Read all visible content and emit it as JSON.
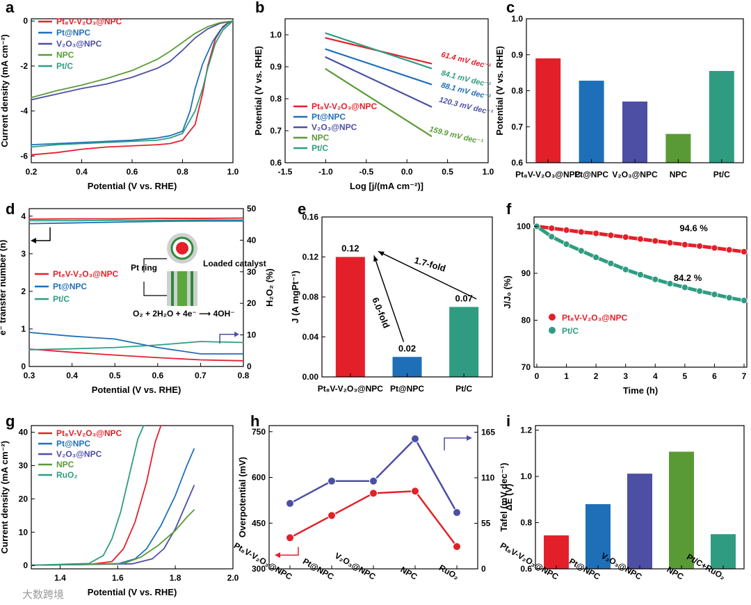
{
  "figure": {
    "watermark": "大数跨境"
  },
  "colors": {
    "Pt8V-V2O3@NPC": "#e3202a",
    "Pt@NPC": "#1f6fb8",
    "V2O3@NPC": "#4c4fa3",
    "NPC": "#5a9a36",
    "Pt/C": "#2f9c82",
    "RuO2": "#2f9c82"
  },
  "chart_data": [
    {
      "id": "a",
      "panel_label": "a",
      "type": "line",
      "xlabel": "Potential (V vs. RHE)",
      "ylabel": "Current density (mA cm⁻²)",
      "xlim": [
        0.2,
        1.0
      ],
      "ylim": [
        -6.3,
        0.1
      ],
      "xticks": [
        0.2,
        0.4,
        0.6,
        0.8,
        1.0
      ],
      "xtick_labels": [
        "0.2",
        "0.4",
        "0.6",
        "0.8",
        "1.0"
      ],
      "yticks": [
        0,
        -2,
        -4,
        -6
      ],
      "ytick_labels": [
        "0",
        "-2",
        "-4",
        "-6"
      ],
      "legend_position": "top-left",
      "series": [
        {
          "name": "Pt8V-V2O3@NPC",
          "label": "Pt₈V-V₂O₃@NPC",
          "x": [
            0.2,
            0.3,
            0.4,
            0.5,
            0.6,
            0.7,
            0.75,
            0.8,
            0.85,
            0.88,
            0.9,
            0.93,
            0.96,
            0.98,
            1.0
          ],
          "y": [
            -5.95,
            -5.85,
            -5.7,
            -5.6,
            -5.55,
            -5.5,
            -5.45,
            -5.3,
            -4.6,
            -3.2,
            -2.0,
            -0.8,
            -0.25,
            -0.08,
            0
          ]
        },
        {
          "name": "Pt@NPC",
          "label": "Pt@NPC",
          "x": [
            0.2,
            0.3,
            0.4,
            0.5,
            0.6,
            0.7,
            0.75,
            0.8,
            0.83,
            0.85,
            0.88,
            0.92,
            0.95,
            0.98,
            1.0
          ],
          "y": [
            -5.5,
            -5.45,
            -5.4,
            -5.35,
            -5.3,
            -5.2,
            -5.1,
            -4.9,
            -4.0,
            -3.0,
            -1.9,
            -0.9,
            -0.4,
            -0.1,
            0
          ]
        },
        {
          "name": "V2O3@NPC",
          "label": "V₂O₃@NPC",
          "x": [
            0.2,
            0.3,
            0.4,
            0.5,
            0.6,
            0.7,
            0.75,
            0.8,
            0.85,
            0.9,
            0.95,
            1.0
          ],
          "y": [
            -3.5,
            -3.25,
            -3.0,
            -2.8,
            -2.5,
            -2.1,
            -1.8,
            -1.3,
            -0.75,
            -0.35,
            -0.1,
            0
          ]
        },
        {
          "name": "NPC",
          "label": "NPC",
          "x": [
            0.2,
            0.3,
            0.4,
            0.5,
            0.6,
            0.7,
            0.75,
            0.8,
            0.85,
            0.9,
            0.95,
            1.0
          ],
          "y": [
            -3.4,
            -3.1,
            -2.85,
            -2.55,
            -2.2,
            -1.7,
            -1.35,
            -0.95,
            -0.55,
            -0.25,
            -0.07,
            0
          ]
        },
        {
          "name": "Pt/C",
          "label": "Pt/C",
          "x": [
            0.2,
            0.3,
            0.4,
            0.5,
            0.6,
            0.7,
            0.75,
            0.8,
            0.85,
            0.88,
            0.9,
            0.93,
            0.96,
            1.0
          ],
          "y": [
            -5.6,
            -5.5,
            -5.45,
            -5.4,
            -5.35,
            -5.3,
            -5.2,
            -5.0,
            -4.0,
            -3.0,
            -2.1,
            -1.0,
            -0.4,
            0
          ]
        }
      ]
    },
    {
      "id": "b",
      "panel_label": "b",
      "type": "line",
      "xlabel": "Log [j/(mA cm⁻²)]",
      "ylabel": "Potential (V vs. RHE)",
      "xlim": [
        -1.5,
        1.0
      ],
      "ylim": [
        0.6,
        1.05
      ],
      "xticks": [
        -1.5,
        -1.0,
        -0.5,
        0.0,
        0.5,
        1.0
      ],
      "xtick_labels": [
        "-1.5",
        "-1.0",
        "-0.5",
        "0.0",
        "0.5",
        "1.0"
      ],
      "yticks": [
        0.6,
        0.7,
        0.8,
        0.9,
        1.0
      ],
      "ytick_labels": [
        "0.6",
        "0.7",
        "0.8",
        "0.9",
        "1.0"
      ],
      "legend_position": "bottom-left",
      "series": [
        {
          "name": "Pt8V-V2O3@NPC",
          "label": "Pt₈V-V₂O₃@NPC",
          "x": [
            -1.0,
            0.3
          ],
          "y": [
            0.99,
            0.91
          ],
          "annotation": "61.4 mV dec⁻¹"
        },
        {
          "name": "Pt@NPC",
          "label": "Pt@NPC",
          "x": [
            -1.0,
            0.3
          ],
          "y": [
            0.955,
            0.845
          ],
          "annotation": "88.1 mV dec⁻¹"
        },
        {
          "name": "V2O3@NPC",
          "label": "V₂O₃@NPC",
          "x": [
            -1.0,
            0.3
          ],
          "y": [
            0.93,
            0.775
          ],
          "annotation": "120.3 mV dec⁻¹"
        },
        {
          "name": "NPC",
          "label": "NPC",
          "x": [
            -1.0,
            0.3
          ],
          "y": [
            0.893,
            0.683
          ],
          "annotation": "159.9 mV dec⁻¹"
        },
        {
          "name": "Pt/C",
          "label": "Pt/C",
          "x": [
            -1.0,
            0.3
          ],
          "y": [
            1.005,
            0.895
          ],
          "annotation": "84.1 mV dec⁻¹"
        }
      ]
    },
    {
      "id": "c",
      "panel_label": "c",
      "type": "bar",
      "ylabel": "Potential (V vs. RHE)",
      "ylim": [
        0.6,
        1.0
      ],
      "yticks": [
        0.6,
        0.7,
        0.8,
        0.9,
        1.0
      ],
      "ytick_labels": [
        "0.6",
        "0.7",
        "0.8",
        "0.9",
        "1.0"
      ],
      "categories": [
        "Pt₈V-V₂O₃@NPC",
        "Pt@NPC",
        "V₂O₃@NPC",
        "NPC",
        "Pt/C"
      ],
      "category_keys": [
        "Pt8V-V2O3@NPC",
        "Pt@NPC",
        "V2O3@NPC",
        "NPC",
        "Pt/C"
      ],
      "values": [
        0.89,
        0.828,
        0.77,
        0.68,
        0.855
      ]
    },
    {
      "id": "d",
      "panel_label": "d",
      "type": "line",
      "xlabel": "Potential (V vs. RHE)",
      "ylabel": "e⁻ transfer number (n)",
      "ylabel_right": "H₂O₂ (%)",
      "xlim": [
        0.3,
        0.8
      ],
      "ylim": [
        0,
        4.2
      ],
      "ylim_right": [
        0,
        50
      ],
      "xticks": [
        0.3,
        0.4,
        0.5,
        0.6,
        0.7,
        0.8
      ],
      "xtick_labels": [
        "0.3",
        "0.4",
        "0.5",
        "0.6",
        "0.7",
        "0.8"
      ],
      "yticks": [
        0,
        1,
        2,
        3,
        4
      ],
      "ytick_labels": [
        "0",
        "1",
        "2",
        "3",
        "4"
      ],
      "yticks_right": [
        0,
        10,
        20,
        30,
        40,
        50
      ],
      "ytick_labels_right": [
        "0",
        "10",
        "20",
        "30",
        "40",
        "50"
      ],
      "legend_position": "middle-left",
      "inset": {
        "ring_label": "Pt ring",
        "catalyst_label": "Loaded catalyst",
        "equation": "O₂ + 2H₂O + 4e⁻ ⟶ 4OH⁻"
      },
      "series": [
        {
          "name": "Pt8V-V2O3@NPC",
          "label": "Pt₈V-V₂O₃@NPC",
          "axis": "left",
          "x": [
            0.3,
            0.4,
            0.5,
            0.6,
            0.7,
            0.8
          ],
          "y": [
            3.92,
            3.93,
            3.93,
            3.94,
            3.94,
            3.95
          ]
        },
        {
          "name": "Pt@NPC",
          "label": "Pt@NPC",
          "axis": "left",
          "x": [
            0.3,
            0.4,
            0.5,
            0.6,
            0.7,
            0.8
          ],
          "y": [
            3.8,
            3.82,
            3.84,
            3.86,
            3.87,
            3.87
          ]
        },
        {
          "name": "Pt/C",
          "label": "Pt/C",
          "axis": "left",
          "x": [
            0.3,
            0.4,
            0.5,
            0.6,
            0.7,
            0.8
          ],
          "y": [
            3.88,
            3.88,
            3.89,
            3.89,
            3.9,
            3.9
          ]
        },
        {
          "name": "Pt8V-V2O3@NPC",
          "label": "",
          "axis": "right",
          "x": [
            0.3,
            0.4,
            0.5,
            0.6,
            0.7,
            0.8
          ],
          "y": [
            5.5,
            4.5,
            3.6,
            2.8,
            2.1,
            1.8
          ]
        },
        {
          "name": "Pt@NPC",
          "label": "",
          "axis": "right",
          "x": [
            0.3,
            0.4,
            0.5,
            0.6,
            0.7,
            0.8
          ],
          "y": [
            10.8,
            9.6,
            8.7,
            6.0,
            4.0,
            4.0
          ]
        },
        {
          "name": "Pt/C",
          "label": "",
          "axis": "right",
          "x": [
            0.3,
            0.4,
            0.5,
            0.6,
            0.7,
            0.8
          ],
          "y": [
            5.3,
            5.6,
            6.0,
            6.8,
            7.9,
            7.6
          ]
        }
      ]
    },
    {
      "id": "e",
      "panel_label": "e",
      "type": "bar",
      "ylabel": "J (A mgPt⁻¹)",
      "ylim": [
        0,
        0.16
      ],
      "yticks": [
        0,
        0.04,
        0.08,
        0.12,
        0.16
      ],
      "ytick_labels": [
        "0.00",
        "0.04",
        "0.08",
        "0.12",
        "0.16"
      ],
      "categories": [
        "Pt₈V-V₂O₃@NPC",
        "Pt@NPC",
        "Pt/C"
      ],
      "category_keys": [
        "Pt8V-V2O3@NPC",
        "Pt@NPC",
        "Pt/C"
      ],
      "values": [
        0.12,
        0.02,
        0.07
      ],
      "value_labels": [
        "0.12",
        "0.02",
        "0.07"
      ],
      "arrows": [
        {
          "from": "Pt@NPC",
          "label": "6.0-fold"
        },
        {
          "from": "Pt/C",
          "label": "1.7-fold"
        }
      ]
    },
    {
      "id": "f",
      "panel_label": "f",
      "type": "scatter",
      "xlabel": "Time (h)",
      "ylabel": "J/J₀ (%)",
      "xlim": [
        0,
        7
      ],
      "ylim": [
        70,
        102
      ],
      "xticks": [
        0,
        1,
        2,
        3,
        4,
        5,
        6,
        7
      ],
      "xtick_labels": [
        "0",
        "1",
        "2",
        "3",
        "4",
        "5",
        "6",
        "7"
      ],
      "yticks": [
        70,
        80,
        90,
        100
      ],
      "ytick_labels": [
        "70",
        "80",
        "90",
        "100"
      ],
      "legend_position": "bottom-left",
      "series": [
        {
          "name": "Pt8V-V2O3@NPC",
          "label": "Pt₈V-V₂O₃@NPC",
          "x": [
            0,
            0.5,
            1,
            1.5,
            2,
            2.5,
            3,
            3.5,
            4,
            4.5,
            5,
            5.5,
            6,
            6.5,
            7
          ],
          "y": [
            100,
            99.6,
            99.2,
            98.8,
            98.5,
            98.1,
            97.7,
            97.3,
            96.9,
            96.5,
            96.1,
            95.8,
            95.4,
            95.0,
            94.6
          ],
          "end_label": "94.6 %"
        },
        {
          "name": "Pt/C",
          "label": "Pt/C",
          "x": [
            0,
            0.5,
            1,
            1.5,
            2,
            2.5,
            3,
            3.5,
            4,
            4.5,
            5,
            5.5,
            6,
            6.5,
            7
          ],
          "y": [
            100,
            97.8,
            96.2,
            94.8,
            93.4,
            92.1,
            90.8,
            89.7,
            88.7,
            87.8,
            87.0,
            86.2,
            85.5,
            84.8,
            84.2
          ],
          "end_label": "84.2 %"
        }
      ]
    },
    {
      "id": "g",
      "panel_label": "g",
      "type": "line",
      "xlabel": "Potential (V vs. RHE)",
      "ylabel": "Current density (mA cm⁻²)",
      "xlim": [
        1.3,
        2.0
      ],
      "ylim": [
        -1,
        42
      ],
      "xticks": [
        1.4,
        1.6,
        1.8,
        2.0
      ],
      "xtick_labels": [
        "1.4",
        "1.6",
        "1.8",
        "2.0"
      ],
      "yticks": [
        0,
        10,
        20,
        30,
        40
      ],
      "ytick_labels": [
        "0",
        "10",
        "20",
        "30",
        "40"
      ],
      "legend_position": "top-left",
      "series": [
        {
          "name": "Pt8V-V2O3@NPC",
          "label": "Pt₈V-V₂O₃@NPC",
          "x": [
            1.3,
            1.5,
            1.58,
            1.62,
            1.66,
            1.7,
            1.73,
            1.75
          ],
          "y": [
            0.1,
            0.3,
            1.2,
            5,
            13,
            25,
            37,
            42
          ]
        },
        {
          "name": "Pt@NPC",
          "label": "Pt@NPC",
          "x": [
            1.3,
            1.6,
            1.66,
            1.7,
            1.75,
            1.8,
            1.84,
            1.865
          ],
          "y": [
            0.1,
            0.5,
            2,
            5,
            12,
            21,
            30,
            35
          ]
        },
        {
          "name": "V2O3@NPC",
          "label": "V₂O₃@NPC",
          "x": [
            1.3,
            1.65,
            1.72,
            1.76,
            1.8,
            1.83,
            1.865
          ],
          "y": [
            0.1,
            0.5,
            2,
            5,
            11,
            17,
            24
          ]
        },
        {
          "name": "NPC",
          "label": "NPC",
          "x": [
            1.3,
            1.62,
            1.68,
            1.74,
            1.8,
            1.84,
            1.865
          ],
          "y": [
            0.1,
            0.6,
            2.5,
            6,
            10.5,
            14.5,
            16.7
          ]
        },
        {
          "name": "RuO2",
          "label": "RuO₂",
          "x": [
            1.3,
            1.5,
            1.55,
            1.58,
            1.61,
            1.64,
            1.67,
            1.69
          ],
          "y": [
            0.1,
            0.6,
            3,
            8,
            16,
            27,
            38,
            42
          ]
        }
      ]
    },
    {
      "id": "h",
      "panel_label": "h",
      "type": "line",
      "ylabel": "Overpotential (mV)",
      "ylabel_right": "Tafel  (mV dec⁻¹)",
      "ylim": [
        300,
        770
      ],
      "ylim_right": [
        0,
        173
      ],
      "yticks": [
        300,
        450,
        600,
        750
      ],
      "ytick_labels": [
        "300",
        "450",
        "600",
        "750"
      ],
      "yticks_right": [
        0,
        55,
        110,
        165
      ],
      "ytick_labels_right": [
        "0",
        "55",
        "110",
        "165"
      ],
      "categories": [
        "Pt₈V-V₂O₃@NPC",
        "Pt@NPC",
        "V₂O₃@NPC",
        "NPC",
        "RuO₂"
      ],
      "series": [
        {
          "name": "Overpotential",
          "axis": "left",
          "color": "#e3202a",
          "values": [
            402,
            475,
            548,
            555,
            373
          ]
        },
        {
          "name": "Tafel",
          "axis": "right",
          "color": "#4c4fa3",
          "values": [
            79,
            106,
            106,
            157,
            68
          ]
        }
      ]
    },
    {
      "id": "i",
      "panel_label": "i",
      "type": "bar",
      "ylabel": "ΔE (V)",
      "ylim": [
        0.6,
        1.22
      ],
      "yticks": [
        0.6,
        0.8,
        1.0,
        1.2
      ],
      "ytick_labels": [
        "0.6",
        "0.8",
        "1.0",
        "1.2"
      ],
      "categories": [
        "Pt₈V-V₂O₃@NPC",
        "Pt@NPC",
        "V₂O₃@NPC",
        "NPC",
        "Pt/C+RuO₂"
      ],
      "category_keys": [
        "Pt8V-V2O3@NPC",
        "Pt@NPC",
        "V2O3@NPC",
        "NPC",
        "Pt/C"
      ],
      "values": [
        0.745,
        0.88,
        1.012,
        1.107,
        0.75
      ]
    }
  ]
}
